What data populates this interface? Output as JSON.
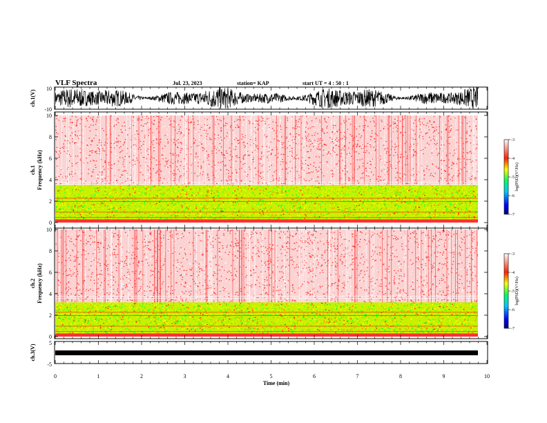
{
  "header": {
    "title": "VLF Spectra",
    "date": "Jul. 23, 2023",
    "station": "station= KAP",
    "start": "start UT =  4 : 50 : 1"
  },
  "colorbar": {
    "label": "log(PSD)(V²/Hz)",
    "ticks": [
      "-3",
      "-4",
      "-5",
      "-6",
      "-7"
    ]
  },
  "chart_data": [
    {
      "type": "line",
      "name": "ch.1 waveform",
      "ylabel": "ch.1(V)",
      "ylim": [
        -10,
        10
      ],
      "yticks": [
        "10",
        "-10"
      ],
      "xlim": [
        0,
        10
      ]
    },
    {
      "type": "heatmap",
      "name": "ch.1 spectrogram",
      "ylabel": "ch.1\nFrequency (kHz)",
      "ylabel_lines": [
        "ch.1",
        "Frequency (kHz)"
      ],
      "ylim": [
        0,
        10
      ],
      "yticks": [
        "0",
        "2",
        "4",
        "6",
        "8",
        "10"
      ],
      "xlim": [
        0,
        10
      ],
      "data_end_min": 9.8,
      "bands": [
        {
          "from_khz": 0.3,
          "to_khz": 3.5,
          "log_psd": -5.2
        },
        {
          "from_khz": 3.5,
          "to_khz": 10,
          "log_psd": -3.8
        }
      ],
      "zlim": [
        -7,
        -3
      ]
    },
    {
      "type": "heatmap",
      "name": "ch.2 spectrogram",
      "ylabel": "ch.2\nFrequency (kHz)",
      "ylabel_lines": [
        "ch.2",
        "Frequency (kHz)"
      ],
      "ylim": [
        0,
        10
      ],
      "yticks": [
        "0",
        "2",
        "4",
        "6",
        "8",
        "10"
      ],
      "xlim": [
        0,
        10
      ],
      "data_end_min": 9.8,
      "bands": [
        {
          "from_khz": 0.3,
          "to_khz": 3.2,
          "log_psd": -5.3
        },
        {
          "from_khz": 3.2,
          "to_khz": 10,
          "log_psd": -3.8
        }
      ],
      "zlim": [
        -7,
        -3
      ]
    },
    {
      "type": "line",
      "name": "ch.3 waveform",
      "ylabel": "ch.3(V)",
      "ylim": [
        -5,
        5
      ],
      "yticks": [
        "5",
        "-5"
      ],
      "xlim": [
        0,
        10
      ],
      "xlabel": "Time (min)",
      "xticks": [
        "0",
        "1",
        "2",
        "3",
        "4",
        "5",
        "6",
        "7",
        "8",
        "9",
        "10"
      ]
    }
  ]
}
